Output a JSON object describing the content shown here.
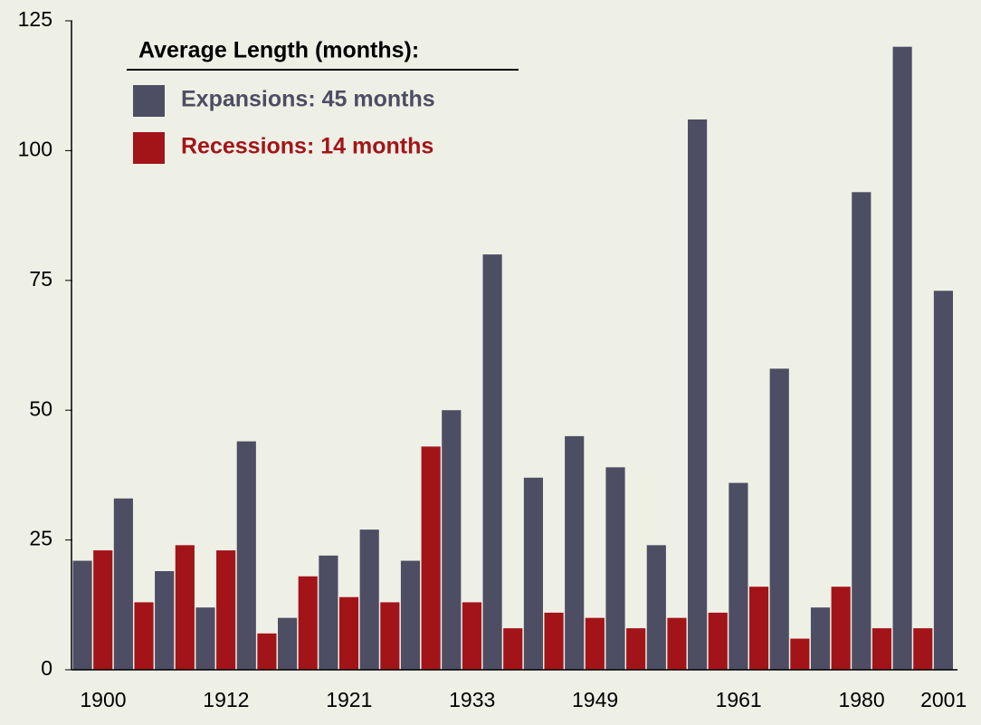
{
  "chart_data": {
    "type": "bar",
    "legend_title": "Average Length (months):",
    "categories": [
      null,
      "1900",
      null,
      null,
      null,
      null,
      null,
      "1912",
      null,
      null,
      null,
      null,
      null,
      "1921",
      null,
      null,
      null,
      null,
      null,
      "1933",
      null,
      null,
      null,
      null,
      null,
      "1949",
      null,
      null,
      null,
      null,
      null,
      null,
      "1961",
      null,
      null,
      null,
      null,
      null,
      "1980",
      null,
      null,
      null,
      "2001"
    ],
    "series": [
      {
        "name": "Expansions: 45 months",
        "color": "#4d4d63",
        "values": [
          21,
          null,
          33,
          null,
          19,
          null,
          12,
          null,
          44,
          null,
          10,
          null,
          22,
          null,
          27,
          null,
          21,
          null,
          50,
          null,
          80,
          null,
          37,
          null,
          45,
          null,
          39,
          null,
          24,
          null,
          106,
          null,
          36,
          null,
          58,
          null,
          12,
          null,
          92,
          null,
          120,
          null,
          73
        ]
      },
      {
        "name": "Recessions: 14 months",
        "color": "#a31419",
        "values": [
          null,
          23,
          null,
          13,
          null,
          24,
          null,
          23,
          null,
          7,
          null,
          18,
          null,
          14,
          null,
          13,
          null,
          43,
          null,
          13,
          null,
          8,
          null,
          11,
          null,
          10,
          null,
          8,
          null,
          10,
          null,
          11,
          null,
          16,
          null,
          6,
          null,
          16,
          null,
          8,
          null,
          8,
          null
        ]
      }
    ],
    "ylim": [
      0,
      125
    ],
    "yticks": [
      0,
      25,
      50,
      75,
      100,
      125
    ]
  }
}
